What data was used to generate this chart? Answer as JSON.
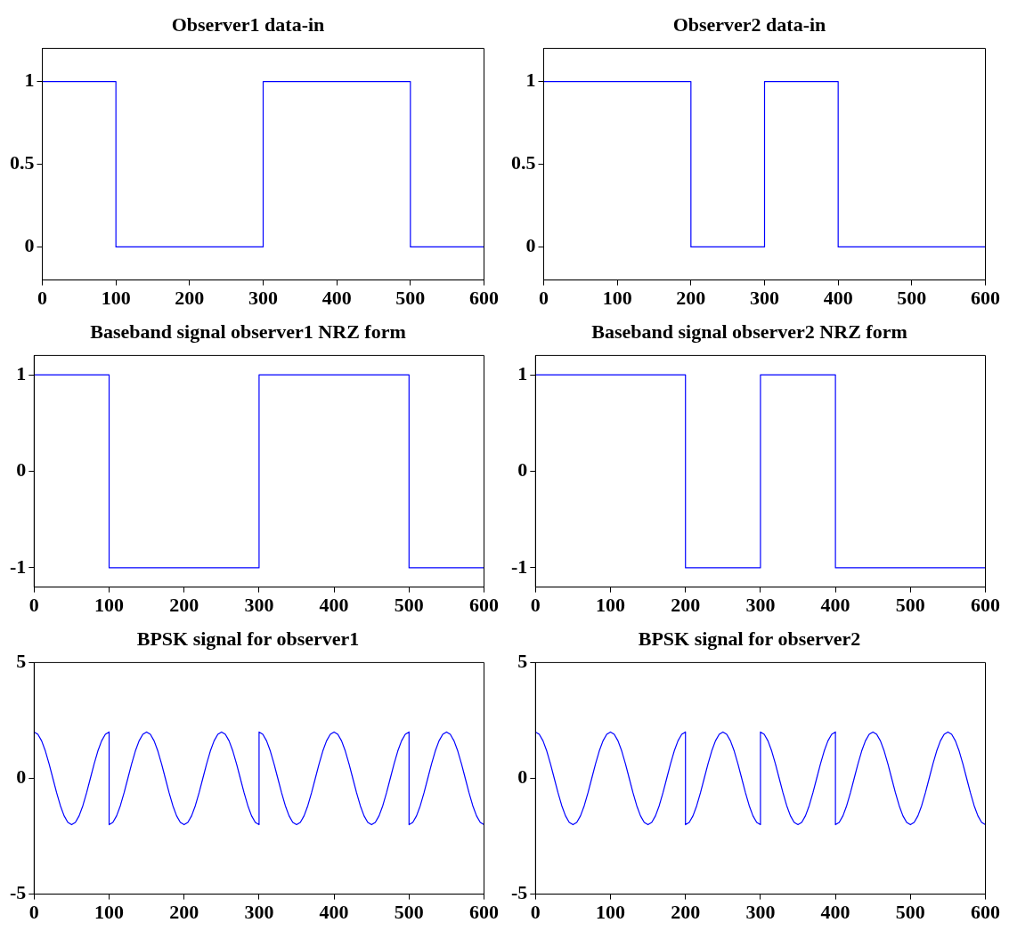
{
  "chart_data": [
    {
      "type": "line",
      "title": "Observer1 data-in",
      "x": [
        0,
        100,
        100,
        300,
        300,
        500,
        500,
        600
      ],
      "values": [
        1,
        1,
        0,
        0,
        1,
        1,
        0,
        0
      ],
      "color": "#0000ff",
      "xlim": [
        0,
        600
      ],
      "xticks": [
        0,
        100,
        200,
        300,
        400,
        500,
        600
      ],
      "ylim": [
        -0.2,
        1.2
      ],
      "yticks": [
        0,
        0.5,
        1
      ],
      "grid": false,
      "legend": false,
      "marker": "none",
      "line_style": "solid"
    },
    {
      "type": "line",
      "title": "Observer2 data-in",
      "x": [
        0,
        200,
        200,
        300,
        300,
        400,
        400,
        600
      ],
      "values": [
        1,
        1,
        0,
        0,
        1,
        1,
        0,
        0
      ],
      "color": "#0000ff",
      "xlim": [
        0,
        600
      ],
      "xticks": [
        0,
        100,
        200,
        300,
        400,
        500,
        600
      ],
      "ylim": [
        -0.2,
        1.2
      ],
      "yticks": [
        0,
        0.5,
        1
      ],
      "grid": false,
      "legend": false,
      "marker": "none",
      "line_style": "solid"
    },
    {
      "type": "line",
      "title": "Baseband signal observer1 NRZ form",
      "x": [
        0,
        100,
        100,
        300,
        300,
        500,
        500,
        600
      ],
      "values": [
        1,
        1,
        -1,
        -1,
        1,
        1,
        -1,
        -1
      ],
      "color": "#0000ff",
      "xlim": [
        0,
        600
      ],
      "xticks": [
        0,
        100,
        200,
        300,
        400,
        500,
        600
      ],
      "ylim": [
        -1.2,
        1.2
      ],
      "yticks": [
        -1,
        0,
        1
      ],
      "grid": false,
      "legend": false,
      "marker": "none",
      "line_style": "solid"
    },
    {
      "type": "line",
      "title": "Baseband signal observer2 NRZ form",
      "x": [
        0,
        200,
        200,
        300,
        300,
        400,
        400,
        600
      ],
      "values": [
        1,
        1,
        -1,
        -1,
        1,
        1,
        -1,
        -1
      ],
      "color": "#0000ff",
      "xlim": [
        0,
        600
      ],
      "xticks": [
        0,
        100,
        200,
        300,
        400,
        500,
        600
      ],
      "ylim": [
        -1.2,
        1.2
      ],
      "yticks": [
        -1,
        0,
        1
      ],
      "grid": false,
      "legend": false,
      "marker": "none",
      "line_style": "solid"
    },
    {
      "type": "line",
      "title": "BPSK signal for observer1",
      "x": [
        0,
        5,
        10,
        15,
        20,
        25,
        30,
        35,
        40,
        45,
        50,
        55,
        60,
        65,
        70,
        75,
        80,
        85,
        90,
        95,
        100,
        100,
        105,
        110,
        115,
        120,
        125,
        130,
        135,
        140,
        145,
        150,
        155,
        160,
        165,
        170,
        175,
        180,
        185,
        190,
        195,
        200,
        205,
        210,
        215,
        220,
        225,
        230,
        235,
        240,
        245,
        250,
        255,
        260,
        265,
        270,
        275,
        280,
        285,
        290,
        295,
        300,
        300,
        305,
        310,
        315,
        320,
        325,
        330,
        335,
        340,
        345,
        350,
        355,
        360,
        365,
        370,
        375,
        380,
        385,
        390,
        395,
        400,
        405,
        410,
        415,
        420,
        425,
        430,
        435,
        440,
        445,
        450,
        455,
        460,
        465,
        470,
        475,
        480,
        485,
        490,
        495,
        500,
        500,
        505,
        510,
        515,
        520,
        525,
        530,
        535,
        540,
        545,
        550,
        555,
        560,
        565,
        570,
        575,
        580,
        585,
        590,
        595,
        600
      ],
      "values": [
        2,
        1.9,
        1.62,
        1.18,
        0.62,
        0,
        -0.62,
        -1.18,
        -1.62,
        -1.9,
        -2,
        -1.9,
        -1.62,
        -1.18,
        -0.62,
        0,
        0.62,
        1.18,
        1.62,
        1.9,
        2,
        -2,
        -1.9,
        -1.62,
        -1.18,
        -0.62,
        0,
        0.62,
        1.18,
        1.62,
        1.9,
        2,
        1.9,
        1.62,
        1.18,
        0.62,
        0,
        -0.62,
        -1.18,
        -1.62,
        -1.9,
        -2,
        -1.9,
        -1.62,
        -1.18,
        -0.62,
        0,
        0.62,
        1.18,
        1.62,
        1.9,
        2,
        1.9,
        1.62,
        1.18,
        0.62,
        0,
        -0.62,
        -1.18,
        -1.62,
        -1.9,
        -2,
        2,
        1.9,
        1.62,
        1.18,
        0.62,
        0,
        -0.62,
        -1.18,
        -1.62,
        -1.9,
        -2,
        -1.9,
        -1.62,
        -1.18,
        -0.62,
        0,
        0.62,
        1.18,
        1.62,
        1.9,
        2,
        1.9,
        1.62,
        1.18,
        0.62,
        0,
        -0.62,
        -1.18,
        -1.62,
        -1.9,
        -2,
        -1.9,
        -1.62,
        -1.18,
        -0.62,
        0,
        0.62,
        1.18,
        1.62,
        1.9,
        2,
        -2,
        -1.9,
        -1.62,
        -1.18,
        -0.62,
        0,
        0.62,
        1.18,
        1.62,
        1.9,
        2,
        1.9,
        1.62,
        1.18,
        0.62,
        0,
        -0.62,
        -1.18,
        -1.62,
        -1.9,
        -2
      ],
      "color": "#0000ff",
      "xlim": [
        0,
        600
      ],
      "xticks": [
        0,
        100,
        200,
        300,
        400,
        500,
        600
      ],
      "ylim": [
        -5,
        5
      ],
      "yticks": [
        -5,
        0,
        5
      ],
      "grid": false,
      "legend": false,
      "marker": "none",
      "line_style": "solid"
    },
    {
      "type": "line",
      "title": "BPSK signal for observer2",
      "x": [
        0,
        5,
        10,
        15,
        20,
        25,
        30,
        35,
        40,
        45,
        50,
        55,
        60,
        65,
        70,
        75,
        80,
        85,
        90,
        95,
        100,
        105,
        110,
        115,
        120,
        125,
        130,
        135,
        140,
        145,
        150,
        155,
        160,
        165,
        170,
        175,
        180,
        185,
        190,
        195,
        200,
        200,
        205,
        210,
        215,
        220,
        225,
        230,
        235,
        240,
        245,
        250,
        255,
        260,
        265,
        270,
        275,
        280,
        285,
        290,
        295,
        300,
        300,
        305,
        310,
        315,
        320,
        325,
        330,
        335,
        340,
        345,
        350,
        355,
        360,
        365,
        370,
        375,
        380,
        385,
        390,
        395,
        400,
        400,
        405,
        410,
        415,
        420,
        425,
        430,
        435,
        440,
        445,
        450,
        455,
        460,
        465,
        470,
        475,
        480,
        485,
        490,
        495,
        500,
        505,
        510,
        515,
        520,
        525,
        530,
        535,
        540,
        545,
        550,
        555,
        560,
        565,
        570,
        575,
        580,
        585,
        590,
        595,
        600
      ],
      "values": [
        2,
        1.9,
        1.62,
        1.18,
        0.62,
        0,
        -0.62,
        -1.18,
        -1.62,
        -1.9,
        -2,
        -1.9,
        -1.62,
        -1.18,
        -0.62,
        0,
        0.62,
        1.18,
        1.62,
        1.9,
        2,
        1.9,
        1.62,
        1.18,
        0.62,
        0,
        -0.62,
        -1.18,
        -1.62,
        -1.9,
        -2,
        -1.9,
        -1.62,
        -1.18,
        -0.62,
        0,
        0.62,
        1.18,
        1.62,
        1.9,
        2,
        -2,
        -1.9,
        -1.62,
        -1.18,
        -0.62,
        0,
        0.62,
        1.18,
        1.62,
        1.9,
        2,
        1.9,
        1.62,
        1.18,
        0.62,
        0,
        -0.62,
        -1.18,
        -1.62,
        -1.9,
        -2,
        2,
        1.9,
        1.62,
        1.18,
        0.62,
        0,
        -0.62,
        -1.18,
        -1.62,
        -1.9,
        -2,
        -1.9,
        -1.62,
        -1.18,
        -0.62,
        0,
        0.62,
        1.18,
        1.62,
        1.9,
        2,
        -2,
        -1.9,
        -1.62,
        -1.18,
        -0.62,
        0,
        0.62,
        1.18,
        1.62,
        1.9,
        2,
        1.9,
        1.62,
        1.18,
        0.62,
        0,
        -0.62,
        -1.18,
        -1.62,
        -1.9,
        -2,
        -1.9,
        -1.62,
        -1.18,
        -0.62,
        0,
        0.62,
        1.18,
        1.62,
        1.9,
        2,
        1.9,
        1.62,
        1.18,
        0.62,
        0,
        -0.62,
        -1.18,
        -1.62,
        -1.9,
        -2
      ],
      "color": "#0000ff",
      "xlim": [
        0,
        600
      ],
      "xticks": [
        0,
        100,
        200,
        300,
        400,
        500,
        600
      ],
      "ylim": [
        -5,
        5
      ],
      "yticks": [
        -5,
        0,
        5
      ],
      "grid": false,
      "legend": false,
      "marker": "none",
      "line_style": "solid"
    }
  ]
}
